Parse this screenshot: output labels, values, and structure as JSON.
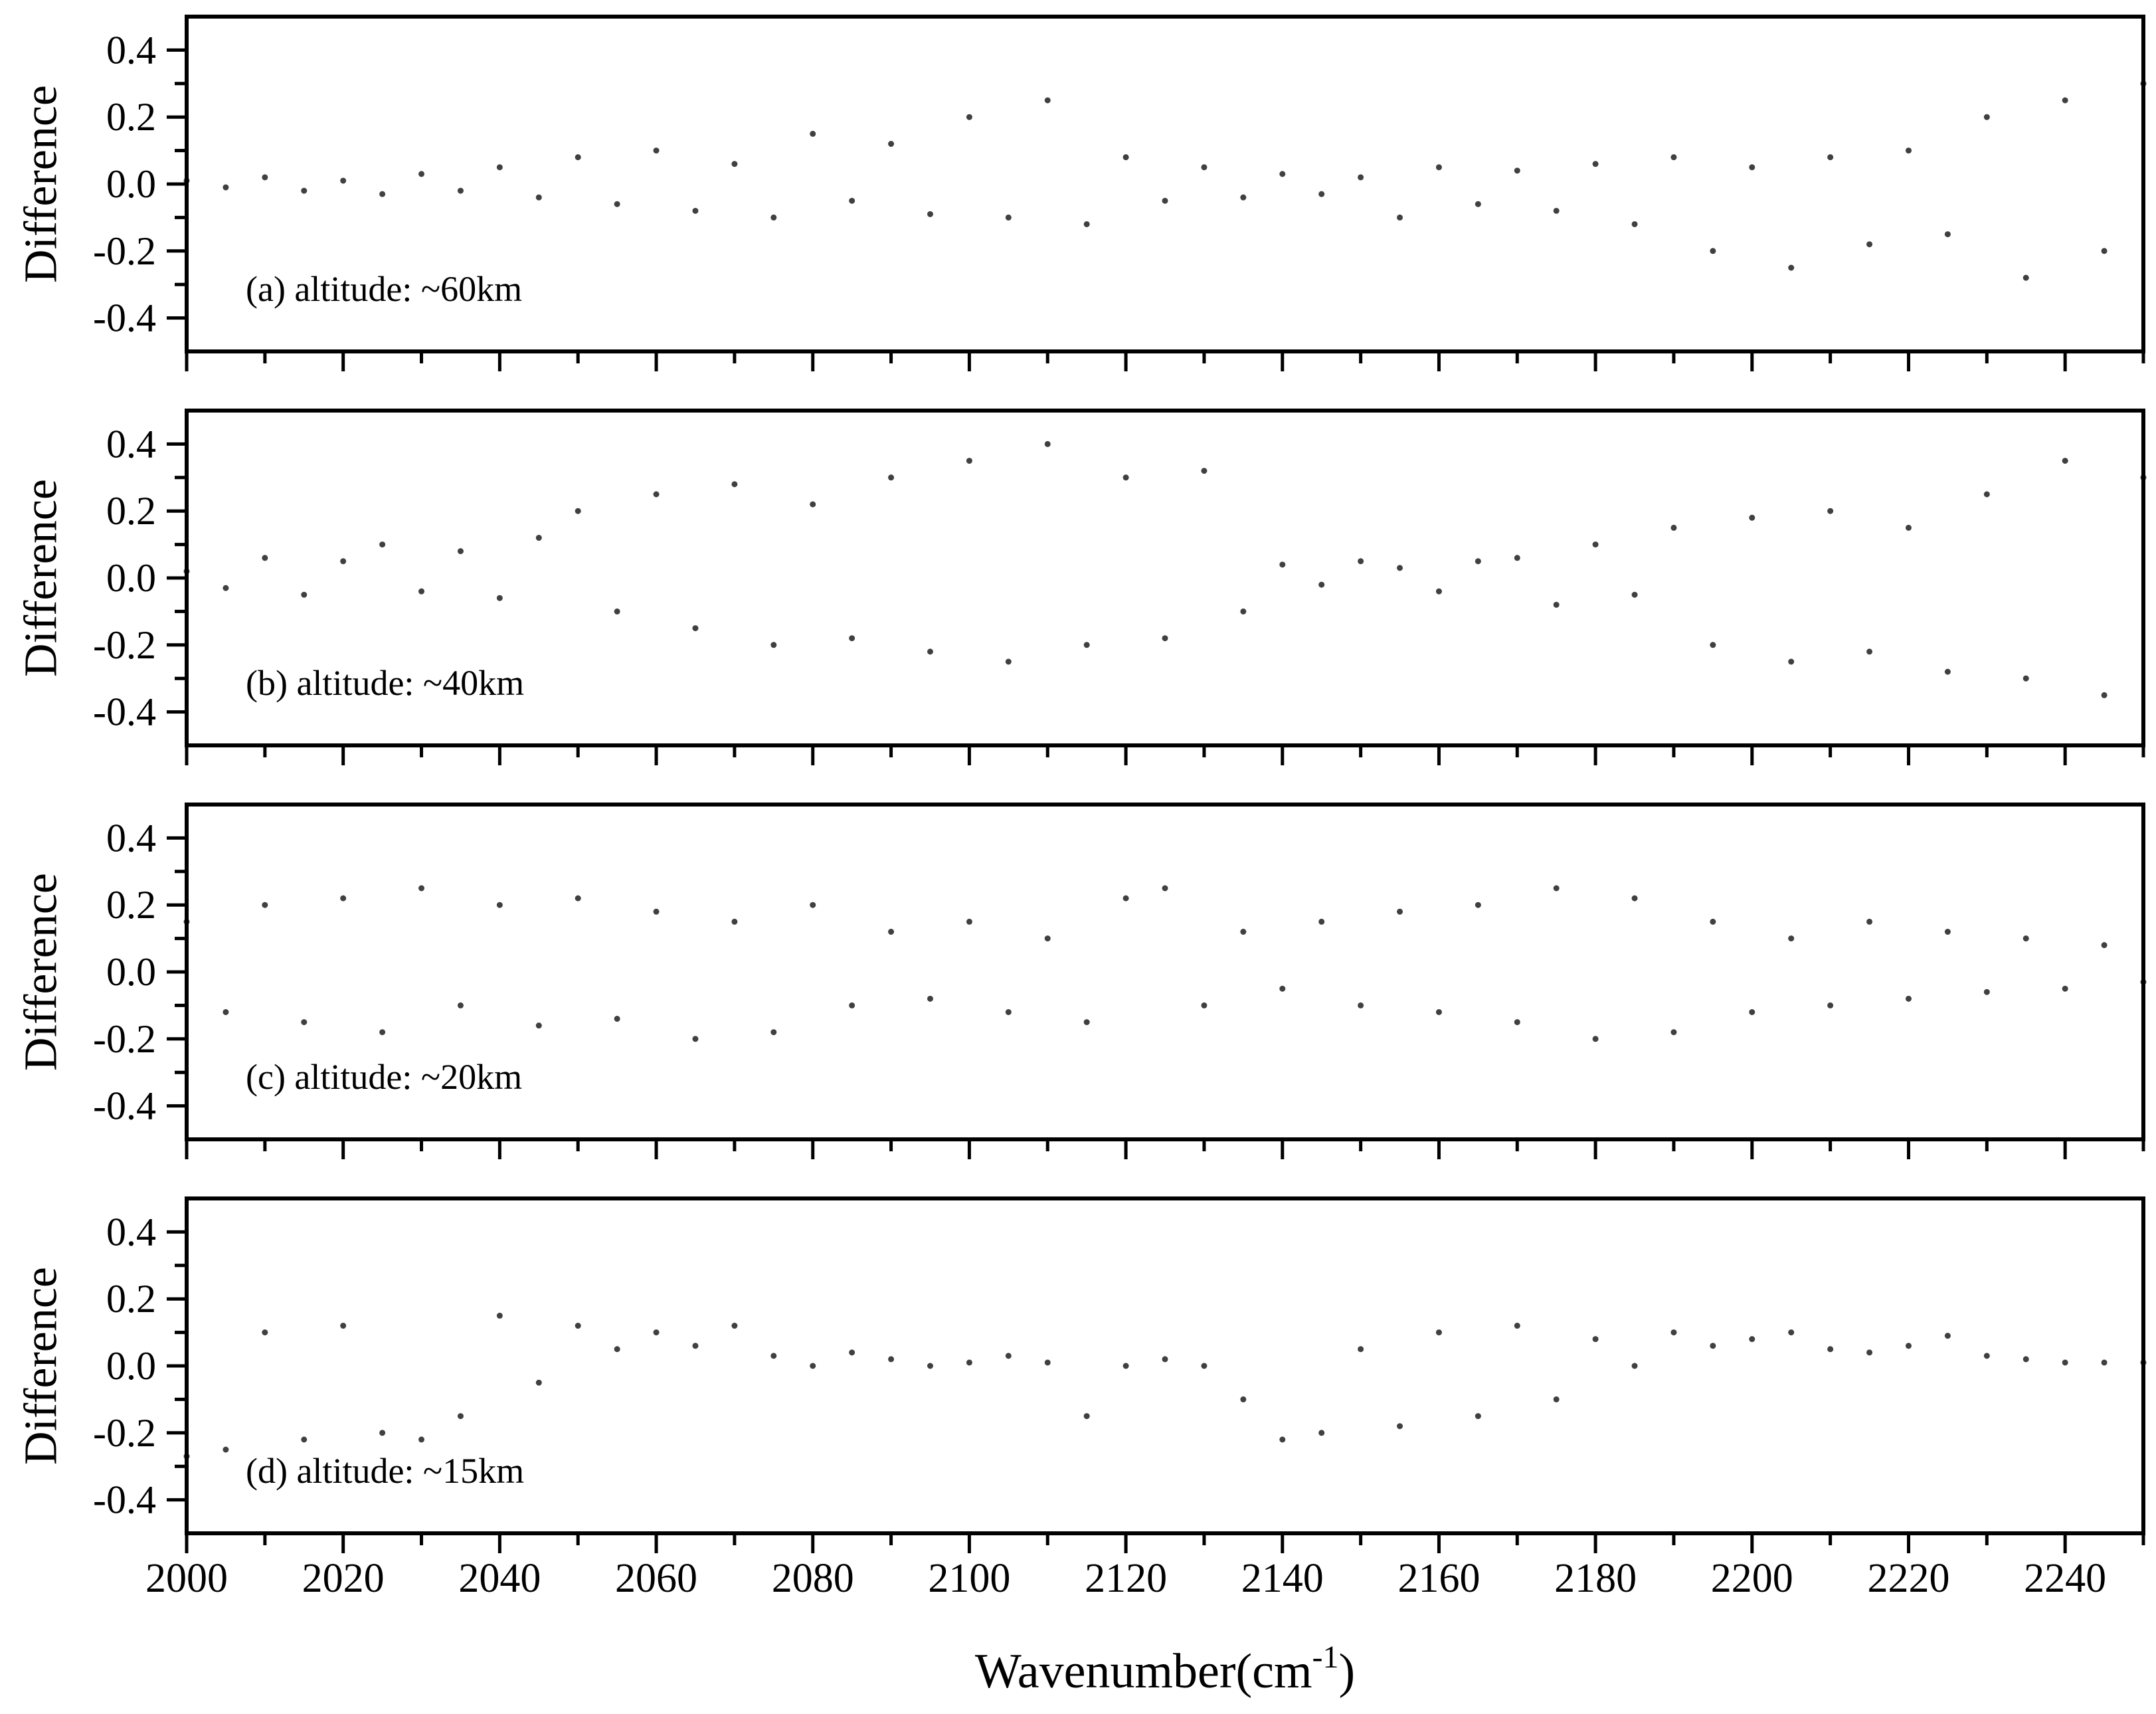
{
  "chart_data": [
    {
      "type": "scatter",
      "annotation": "(a) altitude: ~60km",
      "ylabel": "Difference",
      "color": "#404040",
      "xlim": [
        2000,
        2250
      ],
      "ylim": [
        -0.5,
        0.5
      ],
      "xticks": [
        2000,
        2020,
        2040,
        2060,
        2080,
        2100,
        2120,
        2140,
        2160,
        2180,
        2200,
        2220,
        2240
      ],
      "show_xtick_labels": false,
      "xminor": [
        2010,
        2030,
        2050,
        2070,
        2090,
        2110,
        2130,
        2150,
        2170,
        2190,
        2210,
        2230,
        2250
      ],
      "yticks": [
        -0.4,
        -0.2,
        {
          "value": 0,
          "label": "0.0"
        },
        0.2,
        0.4
      ],
      "yminor": [
        -0.3,
        -0.1,
        0.1,
        0.3
      ],
      "x": [
        2000,
        2005,
        2010,
        2015,
        2020,
        2025,
        2030,
        2035,
        2040,
        2045,
        2050,
        2055,
        2060,
        2065,
        2070,
        2075,
        2080,
        2085,
        2090,
        2095,
        2100,
        2105,
        2110,
        2115,
        2120,
        2125,
        2130,
        2135,
        2140,
        2145,
        2150,
        2155,
        2160,
        2165,
        2170,
        2175,
        2180,
        2185,
        2190,
        2195,
        2200,
        2205,
        2210,
        2215,
        2220,
        2225,
        2230,
        2235,
        2240,
        2245,
        2250
      ],
      "y": [
        0.01,
        -0.01,
        0.02,
        -0.02,
        0.01,
        -0.03,
        0.03,
        -0.02,
        0.05,
        -0.04,
        0.08,
        -0.06,
        0.1,
        -0.08,
        0.06,
        -0.1,
        0.15,
        -0.05,
        0.12,
        -0.09,
        0.2,
        -0.1,
        0.25,
        -0.12,
        0.08,
        -0.05,
        0.05,
        -0.04,
        0.03,
        -0.03,
        0.02,
        -0.1,
        0.05,
        -0.06,
        0.04,
        -0.08,
        0.06,
        -0.12,
        0.08,
        -0.2,
        0.05,
        -0.25,
        0.08,
        -0.18,
        0.1,
        -0.15,
        0.2,
        -0.28,
        0.25,
        -0.2,
        0.3
      ]
    },
    {
      "type": "scatter",
      "annotation": "(b) altitude: ~40km",
      "ylabel": "Difference",
      "color": "#404040",
      "xlim": [
        2000,
        2250
      ],
      "ylim": [
        -0.5,
        0.5
      ],
      "xticks": [
        2000,
        2020,
        2040,
        2060,
        2080,
        2100,
        2120,
        2140,
        2160,
        2180,
        2200,
        2220,
        2240
      ],
      "show_xtick_labels": false,
      "xminor": [
        2010,
        2030,
        2050,
        2070,
        2090,
        2110,
        2130,
        2150,
        2170,
        2190,
        2210,
        2230,
        2250
      ],
      "yticks": [
        -0.4,
        -0.2,
        {
          "value": 0,
          "label": "0.0"
        },
        0.2,
        0.4
      ],
      "yminor": [
        -0.3,
        -0.1,
        0.1,
        0.3
      ],
      "x": [
        2000,
        2005,
        2010,
        2015,
        2020,
        2025,
        2030,
        2035,
        2040,
        2045,
        2050,
        2055,
        2060,
        2065,
        2070,
        2075,
        2080,
        2085,
        2090,
        2095,
        2100,
        2105,
        2110,
        2115,
        2120,
        2125,
        2130,
        2135,
        2140,
        2145,
        2150,
        2155,
        2160,
        2165,
        2170,
        2175,
        2180,
        2185,
        2190,
        2195,
        2200,
        2205,
        2210,
        2215,
        2220,
        2225,
        2230,
        2235,
        2240,
        2245,
        2250
      ],
      "y": [
        0.02,
        -0.03,
        0.06,
        -0.05,
        0.05,
        0.1,
        -0.04,
        0.08,
        -0.06,
        0.12,
        0.2,
        -0.1,
        0.25,
        -0.15,
        0.28,
        -0.2,
        0.22,
        -0.18,
        0.3,
        -0.22,
        0.35,
        -0.25,
        0.4,
        -0.2,
        0.3,
        -0.18,
        0.32,
        -0.1,
        0.04,
        -0.02,
        0.05,
        0.03,
        -0.04,
        0.05,
        0.06,
        -0.08,
        0.1,
        -0.05,
        0.15,
        -0.2,
        0.18,
        -0.25,
        0.2,
        -0.22,
        0.15,
        -0.28,
        0.25,
        -0.3,
        0.35,
        -0.35,
        0.3
      ]
    },
    {
      "type": "scatter",
      "annotation": "(c) altitude: ~20km",
      "ylabel": "Difference",
      "color": "#404040",
      "xlim": [
        2000,
        2250
      ],
      "ylim": [
        -0.5,
        0.5
      ],
      "xticks": [
        2000,
        2020,
        2040,
        2060,
        2080,
        2100,
        2120,
        2140,
        2160,
        2180,
        2200,
        2220,
        2240
      ],
      "show_xtick_labels": false,
      "xminor": [
        2010,
        2030,
        2050,
        2070,
        2090,
        2110,
        2130,
        2150,
        2170,
        2190,
        2210,
        2230,
        2250
      ],
      "yticks": [
        -0.4,
        -0.2,
        {
          "value": 0,
          "label": "0.0"
        },
        0.2,
        0.4
      ],
      "yminor": [
        -0.3,
        -0.1,
        0.1,
        0.3
      ],
      "x": [
        2000,
        2005,
        2010,
        2015,
        2020,
        2025,
        2030,
        2035,
        2040,
        2045,
        2050,
        2055,
        2060,
        2065,
        2070,
        2075,
        2080,
        2085,
        2090,
        2095,
        2100,
        2105,
        2110,
        2115,
        2120,
        2125,
        2130,
        2135,
        2140,
        2145,
        2150,
        2155,
        2160,
        2165,
        2170,
        2175,
        2180,
        2185,
        2190,
        2195,
        2200,
        2205,
        2210,
        2215,
        2220,
        2225,
        2230,
        2235,
        2240,
        2245,
        2250
      ],
      "y": [
        0.15,
        -0.12,
        0.2,
        -0.15,
        0.22,
        -0.18,
        0.25,
        -0.1,
        0.2,
        -0.16,
        0.22,
        -0.14,
        0.18,
        -0.2,
        0.15,
        -0.18,
        0.2,
        -0.1,
        0.12,
        -0.08,
        0.15,
        -0.12,
        0.1,
        -0.15,
        0.22,
        0.25,
        -0.1,
        0.12,
        -0.05,
        0.15,
        -0.1,
        0.18,
        -0.12,
        0.2,
        -0.15,
        0.25,
        -0.2,
        0.22,
        -0.18,
        0.15,
        -0.12,
        0.1,
        -0.1,
        0.15,
        -0.08,
        0.12,
        -0.06,
        0.1,
        -0.05,
        0.08,
        -0.03
      ]
    },
    {
      "type": "scatter",
      "annotation": "(d) altitude: ~15km",
      "ylabel": "Difference",
      "color": "#404040",
      "xlabel": {
        "text": "Wavenumber(cm",
        "sup": "-1",
        "tail": ")"
      },
      "xlim": [
        2000,
        2250
      ],
      "ylim": [
        -0.5,
        0.5
      ],
      "xticks": [
        2000,
        2020,
        2040,
        2060,
        2080,
        2100,
        2120,
        2140,
        2160,
        2180,
        2200,
        2220,
        2240
      ],
      "show_xtick_labels": true,
      "xminor": [
        2010,
        2030,
        2050,
        2070,
        2090,
        2110,
        2130,
        2150,
        2170,
        2190,
        2210,
        2230,
        2250
      ],
      "yticks": [
        -0.4,
        -0.2,
        {
          "value": 0,
          "label": "0.0"
        },
        0.2,
        0.4
      ],
      "yminor": [
        -0.3,
        -0.1,
        0.1,
        0.3
      ],
      "x": [
        2000,
        2005,
        2010,
        2015,
        2020,
        2025,
        2030,
        2035,
        2040,
        2045,
        2050,
        2055,
        2060,
        2065,
        2070,
        2075,
        2080,
        2085,
        2090,
        2095,
        2100,
        2105,
        2110,
        2115,
        2120,
        2125,
        2130,
        2135,
        2140,
        2145,
        2150,
        2155,
        2160,
        2165,
        2170,
        2175,
        2180,
        2185,
        2190,
        2195,
        2200,
        2205,
        2210,
        2215,
        2220,
        2225,
        2230,
        2235,
        2240,
        2245,
        2250
      ],
      "y": [
        -0.27,
        -0.25,
        0.1,
        -0.22,
        0.12,
        -0.2,
        -0.22,
        -0.15,
        0.15,
        -0.05,
        0.12,
        0.05,
        0.1,
        0.06,
        0.12,
        0.03,
        0.0,
        0.04,
        0.02,
        0.0,
        0.01,
        0.03,
        0.01,
        -0.15,
        0.0,
        0.02,
        0.0,
        -0.1,
        -0.22,
        -0.2,
        0.05,
        -0.18,
        0.1,
        -0.15,
        0.12,
        -0.1,
        0.08,
        0.0,
        0.1,
        0.06,
        0.08,
        0.1,
        0.05,
        0.04,
        0.06,
        0.09,
        0.03,
        0.02,
        0.01,
        0.01,
        0.01
      ]
    }
  ]
}
